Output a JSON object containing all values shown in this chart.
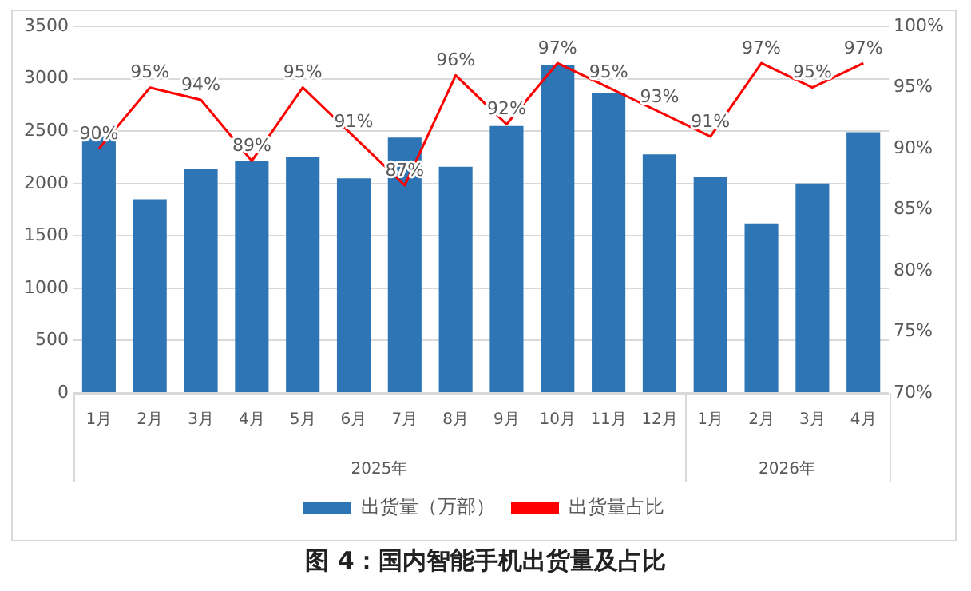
{
  "chart_data": {
    "type": "bar",
    "title": "图 4：国内智能手机出货量及占比",
    "categories": [
      "1月",
      "2月",
      "3月",
      "4月",
      "5月",
      "6月",
      "7月",
      "8月",
      "9月",
      "10月",
      "11月",
      "12月",
      "1月",
      "2月",
      "3月",
      "4月"
    ],
    "annotations": [
      "2025年",
      "2026年"
    ],
    "series": [
      {
        "name": "出货量（万部）",
        "color": "#2e75b6",
        "values": [
          2450,
          1850,
          2140,
          2220,
          2250,
          2050,
          2440,
          2160,
          2550,
          3130,
          2860,
          2280,
          2060,
          1620,
          2000,
          2490
        ]
      },
      {
        "name": "出货量占比",
        "type": "line",
        "axis": "y2",
        "color": "#ff0000",
        "values": [
          90,
          95,
          94,
          89,
          95,
          91,
          87,
          96,
          92,
          97,
          95,
          93,
          91,
          97,
          95,
          97
        ],
        "value_labels": [
          "90%",
          "95%",
          "94%",
          "89%",
          "95%",
          "91%",
          "87%",
          "96%",
          "92%",
          "97%",
          "95%",
          "93%",
          "91%",
          "97%",
          "95%",
          "97%"
        ]
      }
    ],
    "ylim": [
      0,
      3500
    ],
    "yticks": [
      0,
      500,
      1000,
      1500,
      2000,
      2500,
      3000,
      3500
    ],
    "y2lim": [
      70,
      100
    ],
    "y2ticks": [
      {
        "value": 70,
        "label": "70%"
      },
      {
        "value": 75,
        "label": "75%"
      },
      {
        "value": 80,
        "label": "80%"
      },
      {
        "value": 85,
        "label": "85%"
      },
      {
        "value": 90,
        "label": "90%"
      },
      {
        "value": 95,
        "label": "95%"
      },
      {
        "value": 100,
        "label": "100%"
      }
    ],
    "grid": "y",
    "legend": "bottom",
    "marker": "none"
  }
}
